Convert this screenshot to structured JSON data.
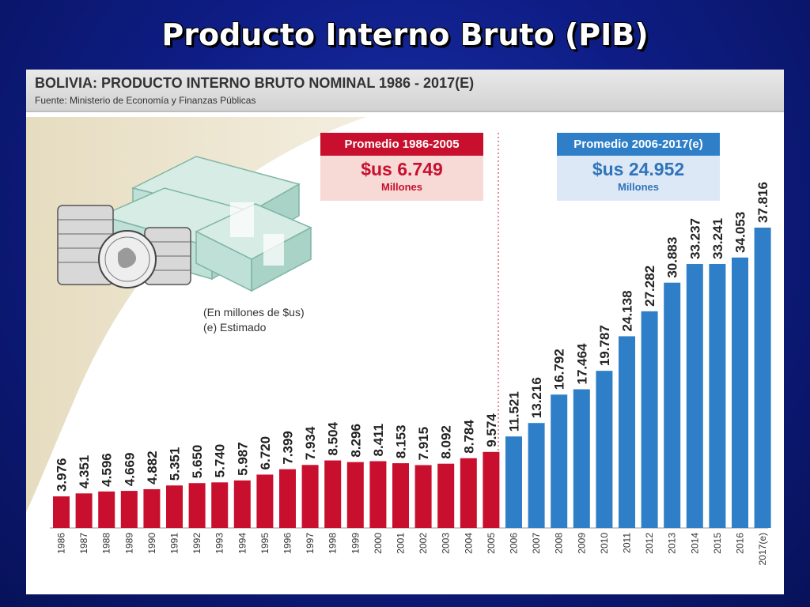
{
  "slide": {
    "title": "Producto Interno Bruto (PIB)"
  },
  "panel": {
    "heading": "BOLIVIA: PRODUCTO INTERNO BRUTO NOMINAL 1986 - 2017(E)",
    "source": "Fuente: Ministerio de Economía y Finanzas Públicas",
    "note_lines": [
      "(En millones de $us)",
      "(e) Estimado"
    ]
  },
  "averages": [
    {
      "label": "Promedio 1986-2005",
      "value": "$us 6.749",
      "unit": "Millones"
    },
    {
      "label": "Promedio 2006-2017(e)",
      "value": "$us 24.952",
      "unit": "Millones"
    }
  ],
  "colors": {
    "red_bars": "#c8102e",
    "blue_bars": "#2f7fc8",
    "background": "#0e1d86"
  },
  "icons": [
    "money-stack-icon",
    "coin-stack-icon"
  ],
  "chart_data": {
    "type": "bar",
    "categories": [
      "1986",
      "1987",
      "1988",
      "1989",
      "1990",
      "1991",
      "1992",
      "1993",
      "1994",
      "1995",
      "1996",
      "1997",
      "1998",
      "1999",
      "2000",
      "2001",
      "2002",
      "2003",
      "2004",
      "2005",
      "2006",
      "2007",
      "2008",
      "2009",
      "2010",
      "2011",
      "2012",
      "2013",
      "2014",
      "2015",
      "2016",
      "2017(e)"
    ],
    "values": [
      3976,
      4351,
      4596,
      4669,
      4882,
      5351,
      5650,
      5740,
      5987,
      6720,
      7399,
      7934,
      8504,
      8296,
      8411,
      8153,
      7915,
      8092,
      8784,
      9574,
      11521,
      13216,
      16792,
      17464,
      19787,
      24138,
      27282,
      30883,
      33237,
      33241,
      34053,
      37816
    ],
    "value_labels": [
      "3.976",
      "4.351",
      "4.596",
      "4.669",
      "4.882",
      "5.351",
      "5.650",
      "5.740",
      "5.987",
      "6.720",
      "7.399",
      "7.934",
      "8.504",
      "8.296",
      "8.411",
      "8.153",
      "7.915",
      "8.092",
      "8.784",
      "9.574",
      "11.521",
      "13.216",
      "16.792",
      "17.464",
      "19.787",
      "24.138",
      "27.282",
      "30.883",
      "33.237",
      "33.241",
      "34.053",
      "37.816"
    ],
    "color_split_index": 20,
    "ylim": [
      0,
      40000
    ],
    "grid": false,
    "legend": "none"
  }
}
